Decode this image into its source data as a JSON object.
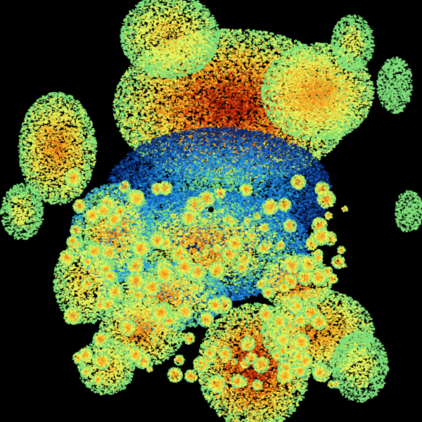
{
  "radar": {
    "background": "#000000",
    "palette": [
      "#0a2a70",
      "#1565c0",
      "#2aa0d8",
      "#7fe07a",
      "#e6f25a",
      "#f5c030",
      "#f08a1a",
      "#d8400e",
      "#a81e08"
    ],
    "site_marker_color": "#000000"
  }
}
